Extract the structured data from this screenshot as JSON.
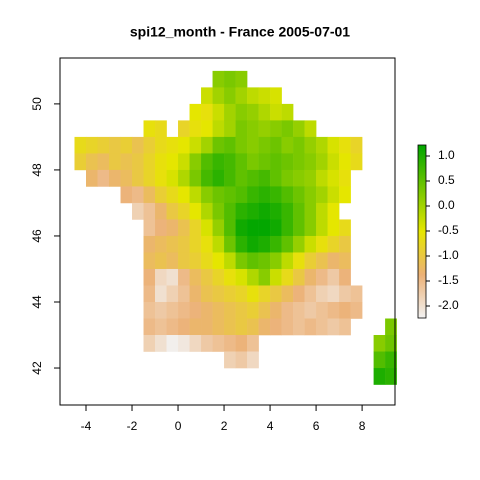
{
  "chart_data": {
    "type": "raster",
    "title": "spi12_month - France 2005-07-01",
    "x": [
      -5,
      -4.5,
      -4,
      -3.5,
      -3,
      -2.5,
      -2,
      -1.5,
      -1,
      -0.5,
      0,
      0.5,
      1,
      1.5,
      2,
      2.5,
      3,
      3.5,
      4,
      4.5,
      5,
      5.5,
      6,
      6.5,
      7,
      7.5,
      8,
      8.5,
      9
    ],
    "y": [
      51,
      50.5,
      50,
      49.5,
      49,
      48.5,
      48,
      47.5,
      47,
      46.5,
      46,
      45.5,
      45,
      44.5,
      44,
      43.5,
      43,
      42.5,
      42
    ],
    "values": [
      [
        null,
        null,
        null,
        null,
        null,
        null,
        null,
        null,
        null,
        null,
        null,
        null,
        null,
        0.2,
        0.3,
        0.2,
        null,
        null,
        null,
        null,
        null,
        null,
        null,
        null,
        null,
        null,
        null,
        null,
        null
      ],
      [
        null,
        null,
        null,
        null,
        null,
        null,
        null,
        null,
        null,
        null,
        null,
        null,
        -0.3,
        0.0,
        0.2,
        0.0,
        -0.2,
        -0.3,
        -0.4,
        null,
        null,
        null,
        null,
        null,
        null,
        null,
        null,
        null,
        null
      ],
      [
        null,
        null,
        null,
        null,
        null,
        null,
        null,
        null,
        null,
        null,
        null,
        -0.5,
        -0.6,
        -0.3,
        0.0,
        0.2,
        0.1,
        -0.1,
        -0.3,
        -0.2,
        null,
        null,
        null,
        null,
        null,
        null,
        null,
        null,
        null
      ],
      [
        null,
        null,
        null,
        null,
        null,
        null,
        null,
        -0.6,
        -0.7,
        null,
        -0.8,
        -0.6,
        -0.5,
        -0.2,
        0.0,
        0.3,
        0.2,
        0.1,
        0.2,
        0.3,
        0.1,
        -0.2,
        null,
        null,
        null,
        null,
        null,
        null,
        null
      ],
      [
        null,
        -0.7,
        -0.8,
        -0.9,
        -1.0,
        -0.9,
        -1.1,
        -0.9,
        -0.7,
        -0.6,
        -0.5,
        -0.3,
        0.0,
        0.4,
        0.5,
        0.3,
        0.2,
        0.3,
        0.4,
        0.2,
        0.3,
        0.1,
        -0.1,
        -0.4,
        -0.6,
        -0.8,
        null,
        null,
        null
      ],
      [
        null,
        -0.9,
        -1.1,
        -1.2,
        -1.0,
        -1.1,
        -1.0,
        -0.8,
        -0.6,
        -0.5,
        -0.3,
        0.2,
        0.6,
        0.8,
        0.7,
        0.5,
        0.3,
        0.4,
        0.5,
        0.4,
        0.3,
        0.2,
        0.0,
        -0.3,
        -0.5,
        -0.7,
        null,
        null,
        null
      ],
      [
        null,
        null,
        -1.3,
        -1.5,
        -1.3,
        -1.2,
        -1.0,
        -0.8,
        -0.6,
        -0.4,
        -0.1,
        0.3,
        0.7,
        0.9,
        0.7,
        0.5,
        0.6,
        0.7,
        0.5,
        0.3,
        0.2,
        0.1,
        -0.2,
        -0.4,
        -0.6,
        null,
        null,
        null,
        null
      ],
      [
        null,
        null,
        null,
        null,
        null,
        -1.4,
        -1.5,
        -1.2,
        -0.9,
        -0.7,
        -0.5,
        -0.2,
        0.2,
        0.4,
        0.5,
        0.6,
        0.8,
        0.9,
        0.8,
        0.6,
        0.4,
        0.2,
        0.0,
        -0.3,
        -0.5,
        null,
        null,
        null,
        null
      ],
      [
        null,
        null,
        null,
        null,
        null,
        null,
        -1.8,
        -1.6,
        -1.3,
        -1.0,
        -0.8,
        -0.5,
        -0.1,
        0.3,
        0.6,
        0.9,
        1.0,
        1.1,
        1.0,
        0.8,
        0.5,
        0.2,
        -0.2,
        -0.5,
        null,
        null,
        null,
        null,
        null
      ],
      [
        null,
        null,
        null,
        null,
        null,
        null,
        null,
        -1.6,
        -1.4,
        -1.3,
        -1.1,
        -0.8,
        -0.4,
        0.1,
        0.6,
        1.1,
        1.2,
        1.2,
        1.1,
        0.8,
        0.5,
        0.2,
        -0.2,
        -0.5,
        -0.7,
        null,
        null,
        null,
        null
      ],
      [
        null,
        null,
        null,
        null,
        null,
        null,
        null,
        -1.3,
        -1.2,
        -1.1,
        -1.0,
        -0.8,
        -0.6,
        -0.2,
        0.4,
        0.9,
        1.1,
        1.0,
        0.8,
        0.5,
        0.1,
        -0.3,
        -0.6,
        -0.8,
        -1.0,
        null,
        null,
        null,
        null
      ],
      [
        null,
        null,
        null,
        null,
        null,
        null,
        null,
        -1.2,
        -1.1,
        -1.2,
        -1.0,
        -0.9,
        -0.7,
        -0.5,
        -0.2,
        0.3,
        0.5,
        0.4,
        0.2,
        -0.2,
        -0.6,
        -0.9,
        -1.1,
        -1.3,
        -1.2,
        null,
        null,
        null,
        null
      ],
      [
        null,
        null,
        null,
        null,
        null,
        null,
        null,
        -1.4,
        -1.9,
        -2.0,
        -1.5,
        -1.2,
        -1.0,
        -0.8,
        -0.6,
        -0.4,
        -0.1,
        0.2,
        -0.3,
        -0.7,
        -1.0,
        -1.3,
        -1.5,
        -1.7,
        -1.4,
        null,
        null,
        null,
        null
      ],
      [
        null,
        null,
        null,
        null,
        null,
        null,
        null,
        -1.5,
        -2.0,
        -1.8,
        -1.6,
        -1.3,
        -1.1,
        -1.0,
        -0.9,
        -0.8,
        -0.6,
        -0.8,
        -1.0,
        -1.2,
        -1.4,
        -1.6,
        -1.8,
        -1.9,
        -1.7,
        -1.6,
        null,
        null,
        null
      ],
      [
        null,
        null,
        null,
        null,
        null,
        null,
        null,
        -1.6,
        -1.7,
        -1.6,
        -1.5,
        -1.4,
        -1.3,
        -1.2,
        -1.1,
        -1.0,
        -0.9,
        -1.1,
        -1.3,
        -1.5,
        -1.6,
        -1.7,
        -1.6,
        -1.5,
        -1.4,
        -1.5,
        null,
        null,
        null
      ],
      [
        null,
        null,
        null,
        null,
        null,
        null,
        null,
        -1.5,
        -1.6,
        -1.5,
        -1.4,
        -1.3,
        -1.3,
        -1.2,
        -1.1,
        -1.0,
        -1.1,
        -1.3,
        -1.4,
        -1.5,
        -1.6,
        -1.5,
        -1.6,
        -1.7,
        -1.6,
        null,
        null,
        null,
        0.3
      ],
      [
        null,
        null,
        null,
        null,
        null,
        null,
        null,
        -1.8,
        -2.0,
        -2.2,
        -2.1,
        -1.9,
        -1.7,
        -1.6,
        -1.5,
        -1.4,
        -1.6,
        null,
        null,
        null,
        null,
        null,
        null,
        null,
        null,
        null,
        null,
        0.2,
        0.4
      ],
      [
        null,
        null,
        null,
        null,
        null,
        null,
        null,
        null,
        null,
        null,
        null,
        null,
        null,
        null,
        -1.8,
        -1.7,
        -1.9,
        null,
        null,
        null,
        null,
        null,
        null,
        null,
        null,
        null,
        null,
        0.6,
        0.8
      ],
      [
        null,
        null,
        null,
        null,
        null,
        null,
        null,
        null,
        null,
        null,
        null,
        null,
        null,
        null,
        null,
        null,
        null,
        null,
        null,
        null,
        null,
        null,
        null,
        null,
        null,
        null,
        null,
        1.0,
        0.9
      ]
    ],
    "xlim": [
      -5.13,
      9.43
    ],
    "xticks": [
      -4,
      -2,
      0,
      2,
      4,
      6,
      8
    ],
    "ylim": [
      40.88,
      51.39
    ],
    "yticks": [
      42,
      44,
      46,
      48,
      50
    ],
    "clim": [
      -2.24,
      1.22
    ],
    "cticks": [
      {
        "value": 1,
        "label": "1.0"
      },
      {
        "value": 0.5,
        "label": "0.5"
      },
      {
        "value": 0,
        "label": "0.0"
      },
      {
        "value": -0.5,
        "label": "-0.5"
      },
      {
        "value": -1,
        "label": "-1.0"
      },
      {
        "value": -1.5,
        "label": "-1.5"
      },
      {
        "value": -2,
        "label": "-2.0"
      }
    ],
    "colormap": [
      "#F2F2F2",
      "#ECB176",
      "#E6E600",
      "#73C600",
      "#00A600"
    ]
  }
}
